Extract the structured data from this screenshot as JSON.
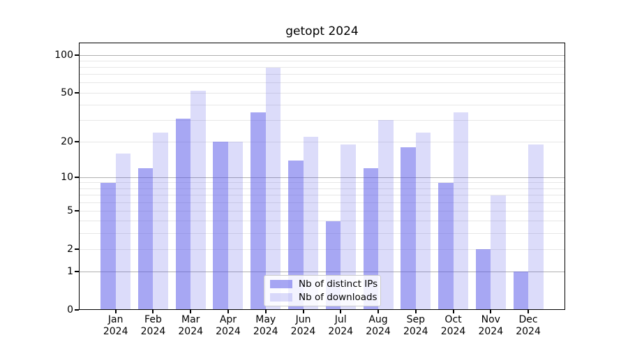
{
  "chart_data": {
    "type": "bar",
    "title": "getopt 2024",
    "x_labels": [
      [
        "Jan",
        "2024"
      ],
      [
        "Feb",
        "2024"
      ],
      [
        "Mar",
        "2024"
      ],
      [
        "Apr",
        "2024"
      ],
      [
        "May",
        "2024"
      ],
      [
        "Jun",
        "2024"
      ],
      [
        "Jul",
        "2024"
      ],
      [
        "Aug",
        "2024"
      ],
      [
        "Sep",
        "2024"
      ],
      [
        "Oct",
        "2024"
      ],
      [
        "Nov",
        "2024"
      ],
      [
        "Dec",
        "2024"
      ]
    ],
    "series": [
      {
        "name": "Nb of distinct IPs",
        "color": "rgba(80,80,232,0.5)",
        "values": [
          9,
          12,
          31,
          20,
          35,
          14,
          4,
          12,
          18,
          9,
          2,
          1
        ]
      },
      {
        "name": "Nb of downloads",
        "color": "rgba(80,80,232,0.2)",
        "values": [
          16,
          24,
          52,
          20,
          80,
          22,
          19,
          30,
          24,
          35,
          7,
          19
        ]
      }
    ],
    "yscale": "log1p",
    "ylim": [
      0,
      126
    ],
    "ytick_values": [
      0,
      1,
      2,
      5,
      10,
      20,
      50,
      100
    ],
    "ytick_labels": [
      "0",
      "1",
      "2",
      "5",
      "10",
      "20",
      "50",
      "100"
    ],
    "grid": {
      "major_values": [
        1,
        10,
        100
      ],
      "minor_values": [
        2,
        3,
        4,
        5,
        6,
        7,
        8,
        9,
        20,
        30,
        40,
        50,
        60,
        70,
        80,
        90
      ],
      "major_color": "#b0b0b0",
      "minor_color": "#e7e7e7"
    },
    "legend_position": "lower center",
    "colors": {
      "spine": "#000000",
      "background": "#ffffff",
      "bar_dark": "rgba(80,80,232,0.5)",
      "bar_light": "rgba(80,80,232,0.2)"
    }
  }
}
